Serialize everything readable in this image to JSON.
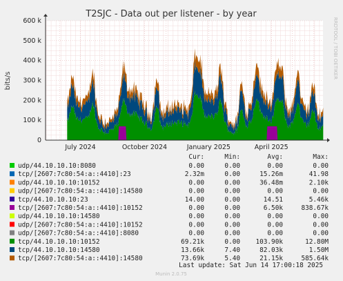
{
  "chart_data": {
    "type": "area",
    "title": "T2SJC - Data out per listener - by year",
    "ylabel": "bits/s",
    "xlabel": "",
    "ylim": [
      0,
      600000
    ],
    "y_ticks": [
      {
        "value": 0,
        "label": "0"
      },
      {
        "value": 100000,
        "label": "100 k"
      },
      {
        "value": 200000,
        "label": "200 k"
      },
      {
        "value": 300000,
        "label": "300 k"
      },
      {
        "value": 400000,
        "label": "400 k"
      },
      {
        "value": 500000,
        "label": "500 k"
      },
      {
        "value": 600000,
        "label": "600 k"
      }
    ],
    "x_range": [
      "2024-05-12",
      "2025-06-14"
    ],
    "x_ticks": [
      {
        "date": "2024-07-01",
        "label": "July 2024"
      },
      {
        "date": "2024-10-01",
        "label": "October 2024"
      },
      {
        "date": "2025-01-01",
        "label": "January 2025"
      },
      {
        "date": "2025-04-01",
        "label": "April 2025"
      }
    ],
    "data_start": "2024-06-12",
    "grid": true,
    "legend_position": "bottom",
    "side_label": "RRDTOOL / TOBI OETIKER",
    "columns": [
      "Cur:",
      "Min:",
      "Avg:",
      "Max:"
    ],
    "series": [
      {
        "name": "udp/44.10.10.10:8080",
        "color": "#00cc00",
        "cur": "0.00",
        "min": "0.00",
        "avg": "0.00",
        "max": "0.00"
      },
      {
        "name": "tcp/[2607:7c80:54:a::4410]:23",
        "color": "#0066b3",
        "cur": "2.32m",
        "min": "0.00",
        "avg": "15.26m",
        "max": "41.98"
      },
      {
        "name": "udp/44.10.10.10:10152",
        "color": "#ff8000",
        "cur": "0.00",
        "min": "0.00",
        "avg": "36.48m",
        "max": "2.10k"
      },
      {
        "name": "udp/[2607:7c80:54:a::4410]:14580",
        "color": "#ffcc00",
        "cur": "0.00",
        "min": "0.00",
        "avg": "0.00",
        "max": "0.00"
      },
      {
        "name": "tcp/44.10.10.10:23",
        "color": "#330099",
        "cur": "14.00",
        "min": "0.00",
        "avg": "14.51",
        "max": "5.46k"
      },
      {
        "name": "tcp/[2607:7c80:54:a::4410]:10152",
        "color": "#990099",
        "cur": "0.00",
        "min": "0.00",
        "avg": "6.50k",
        "max": "838.67k"
      },
      {
        "name": "udp/44.10.10.10:14580",
        "color": "#ccff00",
        "cur": "0.00",
        "min": "0.00",
        "avg": "0.00",
        "max": "0.00"
      },
      {
        "name": "udp/[2607:7c80:54:a::4410]:10152",
        "color": "#ff0000",
        "cur": "0.00",
        "min": "0.00",
        "avg": "0.00",
        "max": "0.00"
      },
      {
        "name": "udp/[2607:7c80:54:a::4410]:8080",
        "color": "#808080",
        "cur": "0.00",
        "min": "0.00",
        "avg": "0.00",
        "max": "0.00"
      },
      {
        "name": "tcp/44.10.10.10:10152",
        "color": "#008f00",
        "cur": "69.21k",
        "min": "0.00",
        "avg": "103.90k",
        "max": "12.80M"
      },
      {
        "name": "tcp/44.10.10.10:14580",
        "color": "#00487d",
        "cur": "13.66k",
        "min": "7.40",
        "avg": "82.03k",
        "max": "1.50M"
      },
      {
        "name": "tcp/[2607:7c80:54:a::4410]:14580",
        "color": "#b35a00",
        "cur": "73.69k",
        "min": "5.40",
        "avg": "21.15k",
        "max": "585.64k"
      }
    ],
    "last_update": "Last update: Sat Jun 14 17:00:18 2025",
    "footer": "Munin 2.0.75"
  }
}
